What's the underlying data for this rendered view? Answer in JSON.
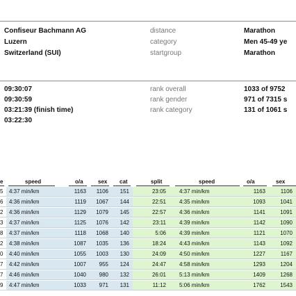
{
  "info": {
    "rows": [
      {
        "c1": "Confiseur Bachmann AG",
        "c2": "distance",
        "c3": "Marathon"
      },
      {
        "c1": "Luzern",
        "c2": "category",
        "c3": "Men 45-49 ye"
      },
      {
        "c1": "Switzerland (SUI)",
        "c2": "startgroup",
        "c3": "Marathon"
      }
    ],
    "times": [
      {
        "c1": "09:30:07",
        "c2": "rank overall",
        "c3": "1033 of 9752"
      },
      {
        "c1": "09:30:59",
        "c2": "rank gender",
        "c3": "971 of 7315 s"
      },
      {
        "c1": "03:21:39 (finish time)",
        "c2": "rank category",
        "c3": "131 of 1061 s"
      },
      {
        "c1": "03:22:30",
        "c2": "",
        "c3": ""
      }
    ]
  },
  "table": {
    "headers": [
      "e",
      "speed",
      "o/a",
      "sex",
      "cat",
      "split",
      "speed",
      "o/a",
      "sex"
    ],
    "rows": [
      [
        "5",
        "4:37 min/km",
        "1163",
        "1106",
        "151",
        "23:05",
        "4:37 min/km",
        "1163",
        "1106"
      ],
      [
        "6",
        "4:36 min/km",
        "1119",
        "1067",
        "144",
        "22:51",
        "4:35 min/km",
        "1093",
        "1041"
      ],
      [
        "2",
        "4:36 min/km",
        "1129",
        "1079",
        "145",
        "22:57",
        "4:36 min/km",
        "1141",
        "1091"
      ],
      [
        "3",
        "4:37 min/km",
        "1125",
        "1076",
        "142",
        "23:11",
        "4:39 min/km",
        "1142",
        "1090"
      ],
      [
        "8",
        "4:37 min/km",
        "1118",
        "1068",
        "140",
        "5:06",
        "4:39 min/km",
        "1121",
        "1070"
      ],
      [
        "2",
        "4:38 min/km",
        "1087",
        "1035",
        "136",
        "18:24",
        "4:43 min/km",
        "1143",
        "1092"
      ],
      [
        "0",
        "4:40 min/km",
        "1055",
        "1003",
        "130",
        "24:09",
        "4:50 min/km",
        "1227",
        "1167"
      ],
      [
        "7",
        "4:42 min/km",
        "1007",
        "955",
        "124",
        "24:47",
        "4:58 min/km",
        "1293",
        "1204"
      ],
      [
        "7",
        "4:46 min/km",
        "1040",
        "980",
        "132",
        "26:01",
        "5:13 min/km",
        "1409",
        "1268"
      ],
      [
        "9",
        "4:47 min/km",
        "1033",
        "971",
        "131",
        "11:12",
        "5:06 min/km",
        "1762",
        "1543"
      ]
    ]
  }
}
